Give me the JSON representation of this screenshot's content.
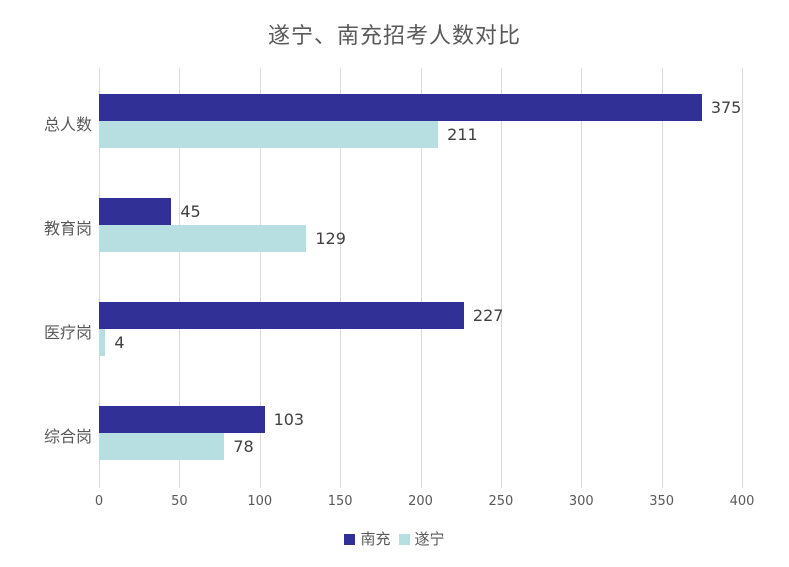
{
  "chart_data": {
    "type": "bar",
    "orientation": "horizontal",
    "title": "遂宁、南充招考人数对比",
    "categories": [
      "总人数",
      "教育岗",
      "医疗岗",
      "综合岗"
    ],
    "series": [
      {
        "name": "南充",
        "color": "#303096",
        "values": [
          375,
          45,
          227,
          103
        ]
      },
      {
        "name": "遂宁",
        "color": "#b7dfe2",
        "values": [
          211,
          129,
          4,
          78
        ]
      }
    ],
    "xlabel": "",
    "ylabel": "",
    "xlim": [
      0,
      400
    ],
    "xticks": [
      "0",
      "50",
      "100",
      "150",
      "200",
      "250",
      "300",
      "350",
      "400"
    ],
    "grid": true,
    "legend_position": "bottom",
    "data_labels": true
  }
}
